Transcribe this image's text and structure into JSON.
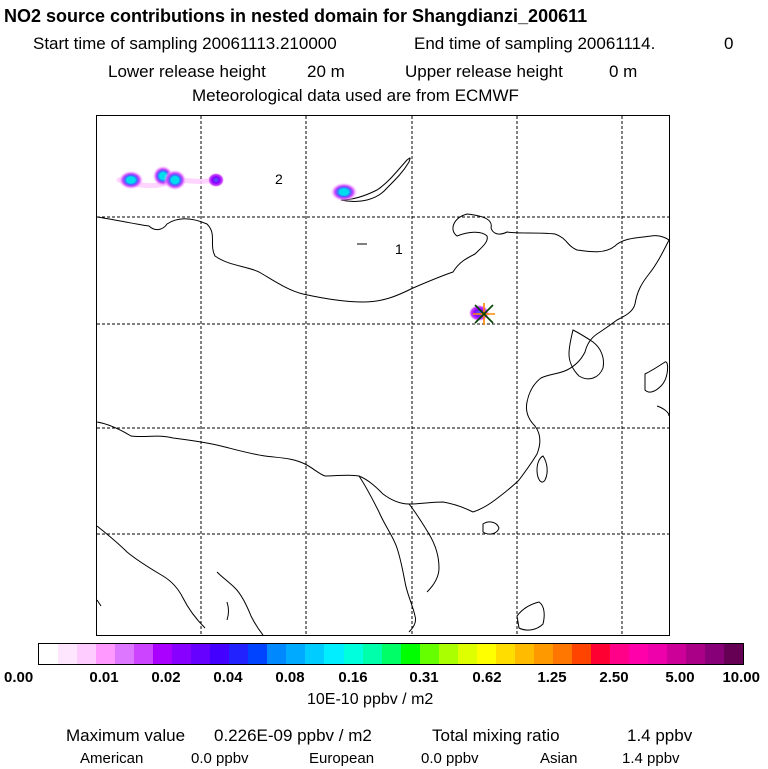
{
  "header": {
    "title": "NO2 source contributions in nested domain for Shangdianzi_200611",
    "start_label": "Start time of sampling 20061113.210000",
    "end_label": "End time of sampling 20061114.",
    "end_value": "0",
    "lower_label": "Lower release height",
    "lower_value": "20 m",
    "upper_label": "Upper release height",
    "upper_value": "0 m",
    "met": "Meteorological data used are from ECMWF"
  },
  "map": {
    "labels": [
      "2",
      "1"
    ],
    "colors": {
      "plume_outer": "#cc44ff",
      "plume_mid": "#4466ff",
      "plume_core": "#00ddee",
      "source_marker": "#ff8800"
    }
  },
  "colorbar": {
    "colors": [
      "#ffffff",
      "#ffe6ff",
      "#ffccff",
      "#ff99ff",
      "#dd77ff",
      "#cc44ff",
      "#aa00ff",
      "#8800ff",
      "#6600ff",
      "#4400ff",
      "#2222ff",
      "#0044ff",
      "#0088ff",
      "#00aaff",
      "#00ccff",
      "#00eeff",
      "#00ffdd",
      "#00ffaa",
      "#00ff66",
      "#00ff00",
      "#66ff00",
      "#aaff00",
      "#ddff00",
      "#ffff00",
      "#ffdd00",
      "#ffbb00",
      "#ff9900",
      "#ff7700",
      "#ff4400",
      "#ff0033",
      "#ff0088",
      "#ff00aa",
      "#ee00aa",
      "#cc0099",
      "#aa0088",
      "#880077",
      "#660055"
    ],
    "tick_labels": [
      "0.00",
      "0.01",
      "0.02",
      "0.04",
      "0.08",
      "0.16",
      "0.31",
      "0.62",
      "1.25",
      "2.50",
      "5.00",
      "10.00"
    ],
    "unit": "10E-10 ppbv / m2"
  },
  "footer": {
    "max_label": "Maximum value",
    "max_value": "0.226E-09 ppbv / m2",
    "total_label": "Total mixing ratio",
    "total_value": "1.4 ppbv",
    "american_label": "American",
    "american_value": "0.0 ppbv",
    "european_label": "European",
    "european_value": "0.0 ppbv",
    "asian_label": "Asian",
    "asian_value": "1.4 ppbv"
  }
}
